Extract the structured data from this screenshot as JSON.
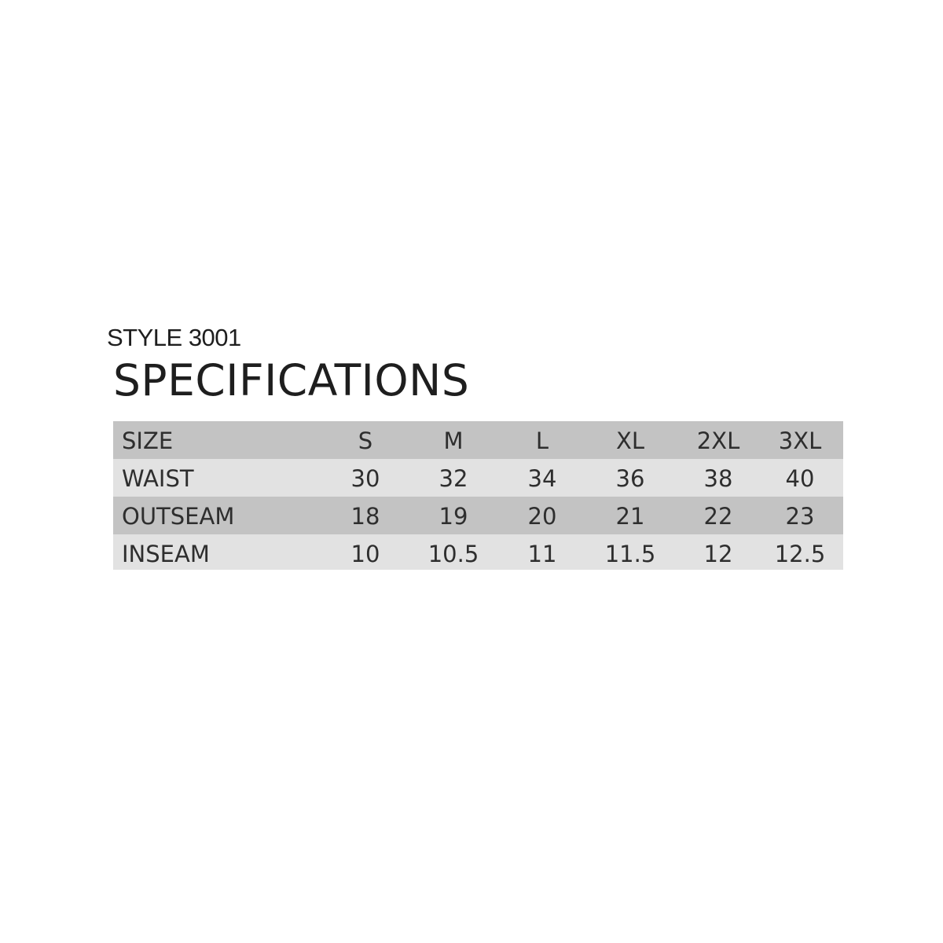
{
  "style_label": "STYLE 3001",
  "title": "SPECIFICATIONS",
  "table": {
    "header": {
      "label": "SIZE",
      "cells": [
        "S",
        "M",
        "L",
        "XL",
        "2XL",
        "3XL"
      ]
    },
    "rows": [
      {
        "label": "WAIST",
        "cells": [
          "30",
          "32",
          "34",
          "36",
          "38",
          "40"
        ]
      },
      {
        "label": "OUTSEAM",
        "cells": [
          "18",
          "19",
          "20",
          "21",
          "22",
          "23"
        ]
      },
      {
        "label": "INSEAM",
        "cells": [
          "10",
          "10.5",
          "11",
          "11.5",
          "12",
          "12.5"
        ]
      }
    ]
  },
  "colors": {
    "dark_row": "#c3c3c3",
    "light_row": "#e2e2e2"
  }
}
